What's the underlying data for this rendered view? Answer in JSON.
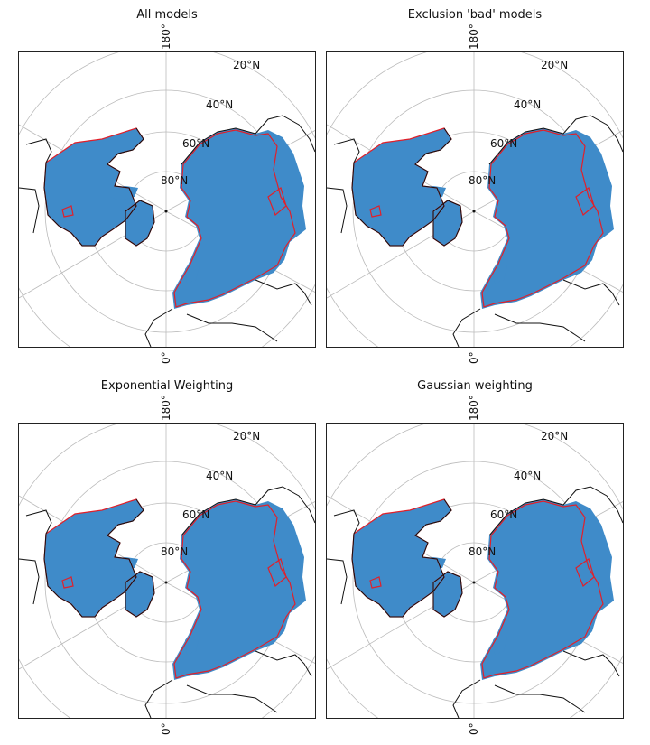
{
  "panels": [
    {
      "title": "All models"
    },
    {
      "title": "Exclusion 'bad' models"
    },
    {
      "title": "Exponential Weighting"
    },
    {
      "title": "Gaussian weighting"
    }
  ],
  "labels": {
    "lon_top": "180°",
    "lon_bottom": "0°",
    "lat_20": "20°N",
    "lat_40": "40°N",
    "lat_60": "60°N",
    "lat_80": "80°N"
  },
  "colors": {
    "fill": "#3f8bc9",
    "contour": "#e0202a",
    "coast": "#111111",
    "grid": "#bbbbbb"
  }
}
